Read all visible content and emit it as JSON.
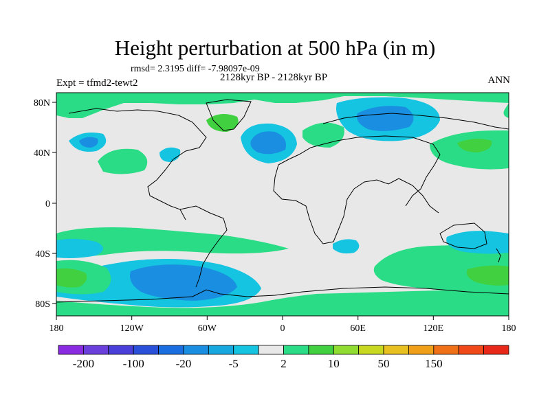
{
  "header": {
    "title": "Height perturbation at 500 hPa (in m)",
    "stats": "rmsd= 2.3195 diff= -7.98097e-09",
    "period": "2128kyr BP - 2128kyr BP",
    "experiment": "Expt = tfmd2-tewt2",
    "season": "ANN"
  },
  "axes": {
    "x_ticks": [
      "180",
      "120W",
      "60W",
      "0",
      "60E",
      "120E",
      "180"
    ],
    "y_ticks": [
      "80N",
      "40N",
      "0",
      "40S",
      "80S"
    ]
  },
  "colorbar": {
    "colors": [
      "#8a2be2",
      "#6a3fdc",
      "#4a3fd8",
      "#2a4fd8",
      "#1a6ee0",
      "#1a8ee0",
      "#17a8e0",
      "#14c4e0",
      "#e8e8e8",
      "#2bdc86",
      "#40d040",
      "#90dc30",
      "#c8d820",
      "#e8c020",
      "#f0a018",
      "#f07018",
      "#f04818",
      "#e82818"
    ],
    "labels": [
      "-200",
      "-100",
      "-20",
      "-5",
      "2",
      "10",
      "50",
      "150"
    ],
    "label_boundary_index": [
      1,
      3,
      5,
      7,
      9,
      11,
      13,
      15
    ]
  },
  "map": {
    "land_color": "#e8e8e8",
    "positive_color": "#2bdc86",
    "strong_positive_color": "#40d040",
    "negative_color": "#14c4e0",
    "strong_negative_color": "#1a8ee0"
  }
}
